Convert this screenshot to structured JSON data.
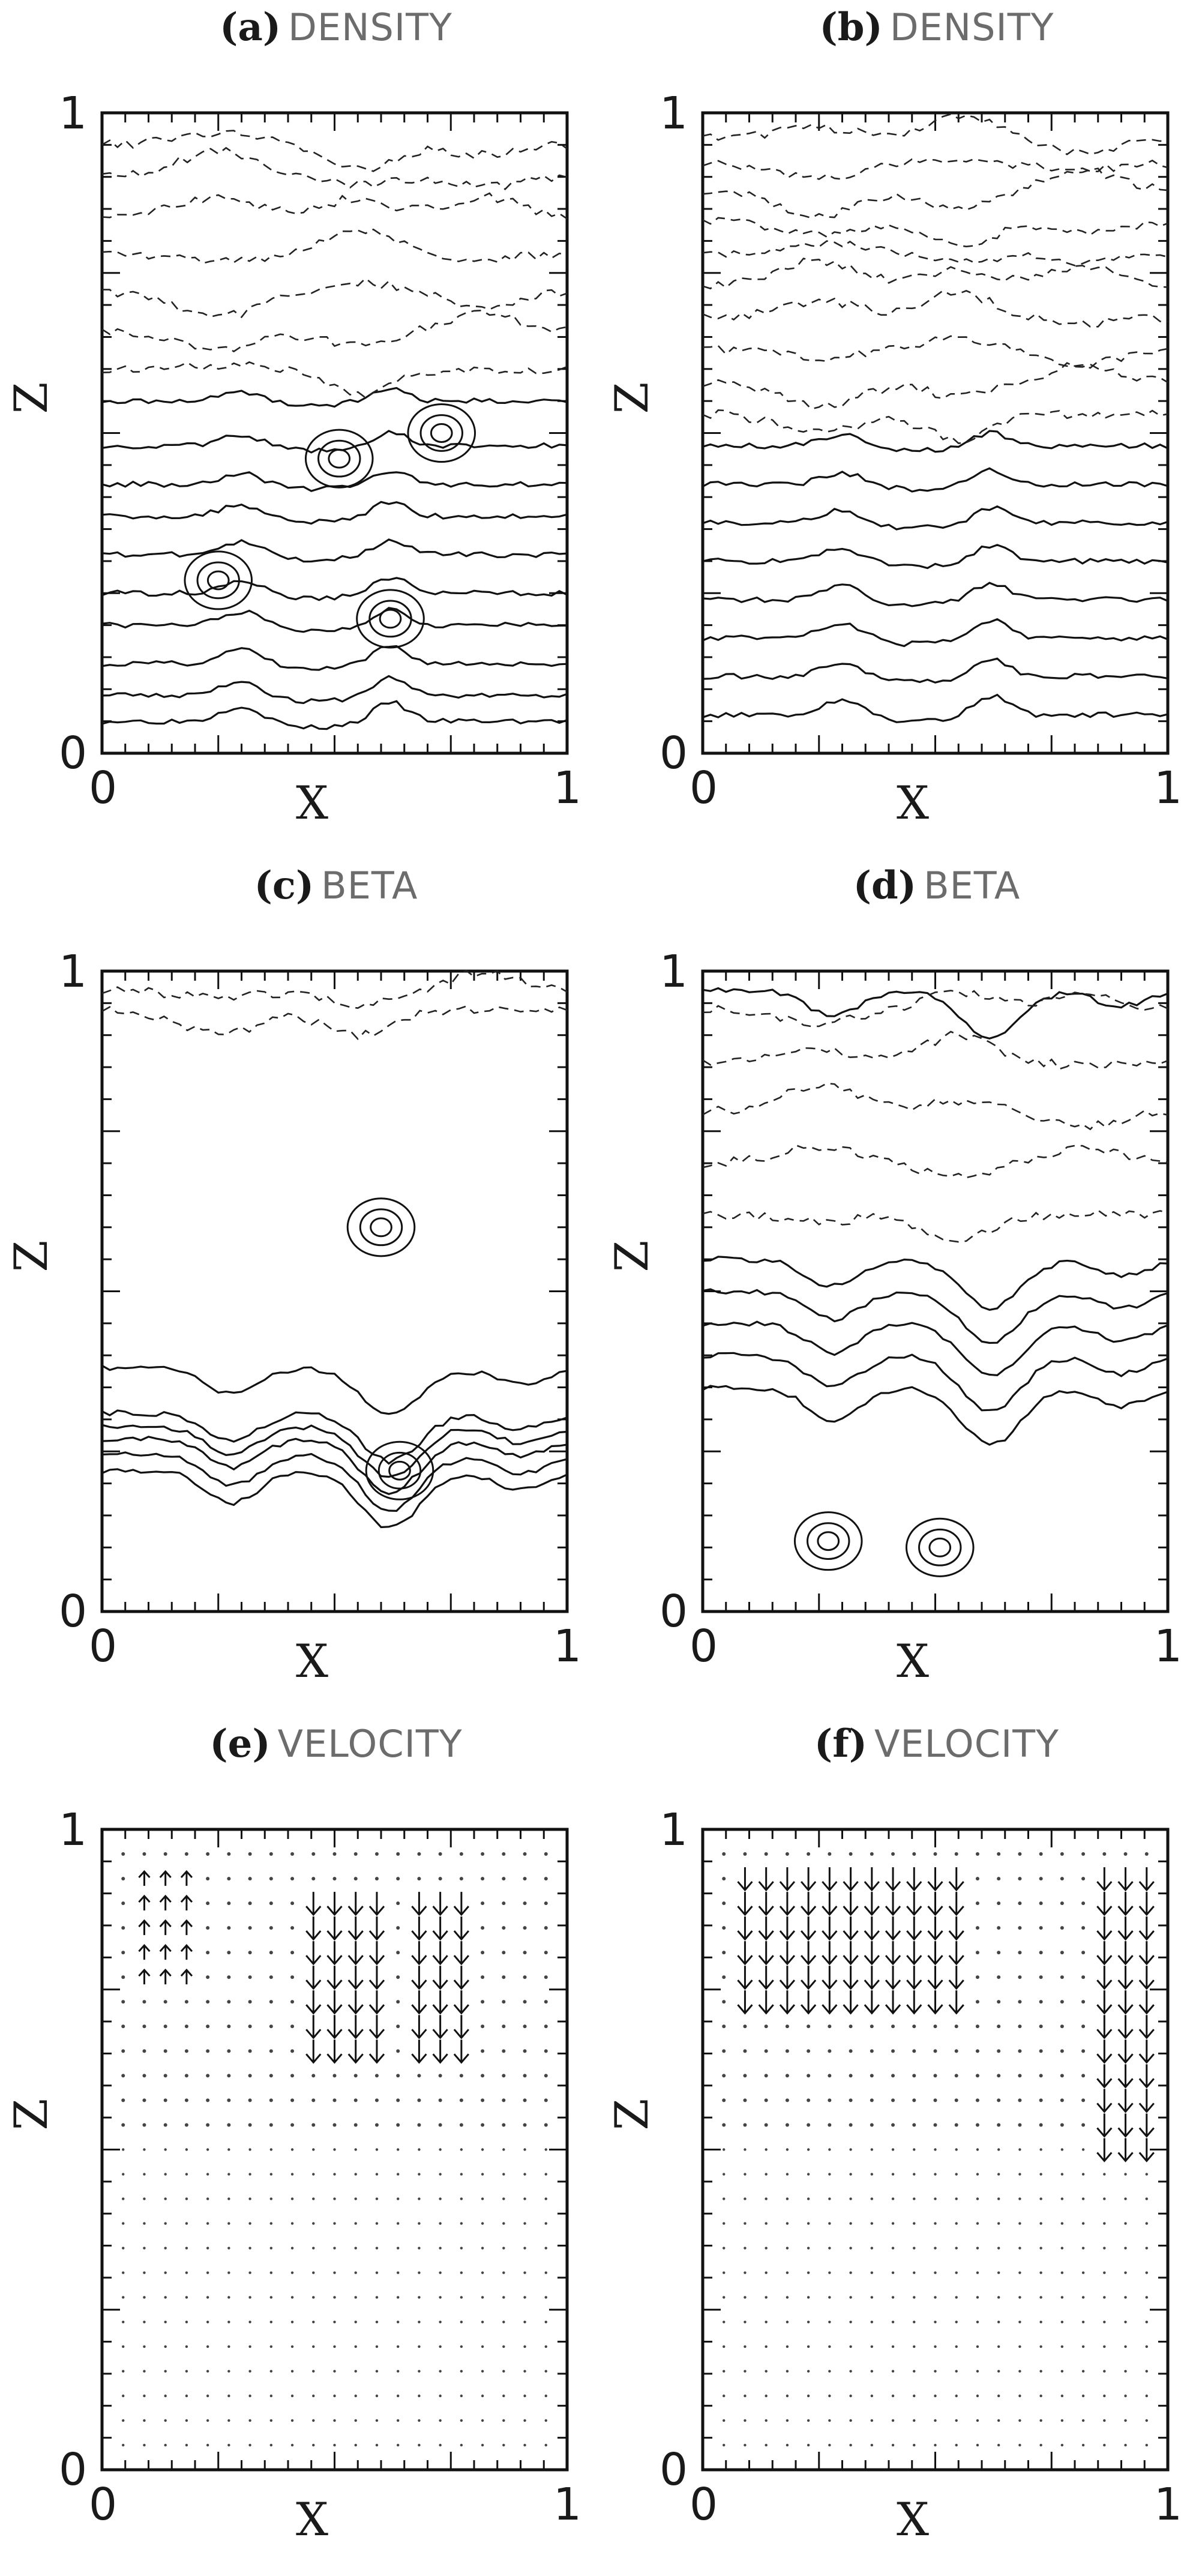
{
  "panels": [
    {
      "label": "(a)",
      "name": "DENSITY",
      "kind": "contour",
      "xlabel": "X",
      "ylabel": "Z",
      "xticks": [
        "0",
        "1"
      ],
      "yticks": [
        "0",
        "1"
      ]
    },
    {
      "label": "(b)",
      "name": "DENSITY",
      "kind": "contour",
      "xlabel": "X",
      "ylabel": "Z",
      "xticks": [
        "0",
        "1"
      ],
      "yticks": [
        "0",
        "1"
      ]
    },
    {
      "label": "(c)",
      "name": "BETA",
      "kind": "contour",
      "xlabel": "X",
      "ylabel": "Z",
      "xticks": [
        "0",
        "1"
      ],
      "yticks": [
        "0",
        "1"
      ]
    },
    {
      "label": "(d)",
      "name": "BETA",
      "kind": "contour",
      "xlabel": "X",
      "ylabel": "Z",
      "xticks": [
        "0",
        "1"
      ],
      "yticks": [
        "0",
        "1"
      ]
    },
    {
      "label": "(e)",
      "name": "VELOCITY",
      "kind": "vector",
      "xlabel": "X",
      "ylabel": "Z",
      "xticks": [
        "0",
        "1"
      ],
      "yticks": [
        "0",
        "1"
      ]
    },
    {
      "label": "(f)",
      "name": "VELOCITY",
      "kind": "vector",
      "xlabel": "X",
      "ylabel": "Z",
      "xticks": [
        "0",
        "1"
      ],
      "yticks": [
        "0",
        "1"
      ]
    }
  ],
  "chart_data": [
    {
      "type": "contour",
      "xlim": [
        0,
        1
      ],
      "ylim": [
        0,
        1
      ],
      "title": "(a) DENSITY",
      "xlabel": "X",
      "ylabel": "Z",
      "solid_lines_z": [
        0.05,
        0.09,
        0.14,
        0.2,
        0.25,
        0.31,
        0.37,
        0.42,
        0.48,
        0.55
      ],
      "dashed_lines_z": [
        0.6,
        0.66,
        0.72,
        0.78,
        0.84,
        0.9,
        0.95
      ],
      "closed_solid_contours": [
        {
          "x": 0.25,
          "z": 0.27
        },
        {
          "x": 0.62,
          "z": 0.21
        },
        {
          "x": 0.51,
          "z": 0.46
        },
        {
          "x": 0.73,
          "z": 0.5
        }
      ]
    },
    {
      "type": "contour",
      "xlim": [
        0,
        1
      ],
      "ylim": [
        0,
        1
      ],
      "title": "(b) DENSITY",
      "xlabel": "X",
      "ylabel": "Z",
      "solid_lines_z": [
        0.06,
        0.12,
        0.18,
        0.24,
        0.3,
        0.36,
        0.42,
        0.48
      ],
      "dashed_lines_z": [
        0.53,
        0.58,
        0.63,
        0.68,
        0.73,
        0.78,
        0.83,
        0.88,
        0.92,
        0.96
      ]
    },
    {
      "type": "contour",
      "xlim": [
        0,
        1
      ],
      "ylim": [
        0,
        1
      ],
      "title": "(c) BETA",
      "xlabel": "X",
      "ylabel": "Z",
      "solid_lines_z": [
        0.22,
        0.245,
        0.27,
        0.29,
        0.31,
        0.38
      ],
      "dashed_lines_z": [
        0.94,
        0.97
      ],
      "closed_solid_contours": [
        {
          "x": 0.6,
          "z": 0.6
        },
        {
          "x": 0.64,
          "z": 0.22
        }
      ]
    },
    {
      "type": "contour",
      "xlim": [
        0,
        1
      ],
      "ylim": [
        0,
        1
      ],
      "title": "(d) BETA",
      "xlabel": "X",
      "ylabel": "Z",
      "solid_lines_z": [
        0.35,
        0.4,
        0.45,
        0.5,
        0.55,
        0.97
      ],
      "dashed_lines_z": [
        0.62,
        0.7,
        0.78,
        0.86,
        0.94
      ],
      "closed_solid_contours": [
        {
          "x": 0.27,
          "z": 0.11
        },
        {
          "x": 0.51,
          "z": 0.1
        }
      ]
    },
    {
      "type": "vector",
      "xlim": [
        0,
        1
      ],
      "ylim": [
        0,
        1
      ],
      "title": "(e) VELOCITY",
      "xlabel": "X",
      "ylabel": "Z",
      "downflow_regions": [
        {
          "x": [
            0.42,
            0.6
          ],
          "z": [
            0.62,
            0.92
          ]
        },
        {
          "x": [
            0.68,
            0.8
          ],
          "z": [
            0.65,
            0.92
          ]
        }
      ],
      "upflow_regions": [
        {
          "x": [
            0.05,
            0.2
          ],
          "z": [
            0.75,
            0.93
          ]
        }
      ]
    },
    {
      "type": "vector",
      "xlim": [
        0,
        1
      ],
      "ylim": [
        0,
        1
      ],
      "title": "(f) VELOCITY",
      "xlabel": "X",
      "ylabel": "Z",
      "downflow_regions": [
        {
          "x": [
            0.08,
            0.55
          ],
          "z": [
            0.72,
            0.93
          ]
        },
        {
          "x": [
            0.86,
            0.98
          ],
          "z": [
            0.5,
            0.93
          ]
        }
      ],
      "upflow_regions": []
    }
  ]
}
